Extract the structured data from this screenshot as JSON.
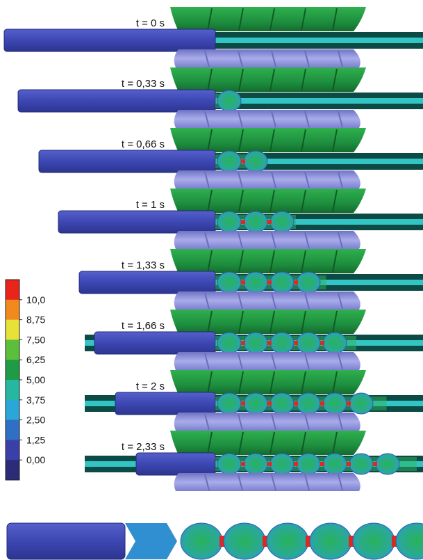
{
  "frames": [
    {
      "label": "t = 0 s",
      "bulbs": 0,
      "fill": 0.0,
      "rod_left": 6
    },
    {
      "label": "t = 0,33 s",
      "bulbs": 1,
      "fill": 0.12,
      "rod_left": 26
    },
    {
      "label": "t = 0,66 s",
      "bulbs": 2,
      "fill": 0.25,
      "rod_left": 56
    },
    {
      "label": "t = 1 s",
      "bulbs": 3,
      "fill": 0.4,
      "rod_left": 84
    },
    {
      "label": "t = 1,33 s",
      "bulbs": 4,
      "fill": 0.55,
      "rod_left": 114
    },
    {
      "label": "t = 1,66 s",
      "bulbs": 5,
      "fill": 0.7,
      "rod_left": 136
    },
    {
      "label": "t = 2 s",
      "bulbs": 6,
      "fill": 0.85,
      "rod_left": 166
    },
    {
      "label": "t = 2,33 s",
      "bulbs": 7,
      "fill": 1.0,
      "rod_left": 196
    }
  ],
  "colorbar": {
    "ticks": [
      "10,0",
      "8,75",
      "7,50",
      "6,25",
      "5,00",
      "3,75",
      "2,50",
      "1,25",
      "0,00"
    ],
    "colors": [
      "#e8241b",
      "#f08a1e",
      "#e6e23a",
      "#5bbf3c",
      "#1f9b46",
      "#27b6a0",
      "#2aa7d8",
      "#2f6fc4",
      "#3b3fa8",
      "#2b2b78"
    ]
  },
  "colors": {
    "rod": "#3f49b8",
    "screw_green": "#1f9440",
    "screw_lavender": "#8f93d6",
    "channel": "#0c4a45",
    "core": "#33c4c4",
    "melt": "#2fb35a",
    "neck": "#e0281e"
  }
}
